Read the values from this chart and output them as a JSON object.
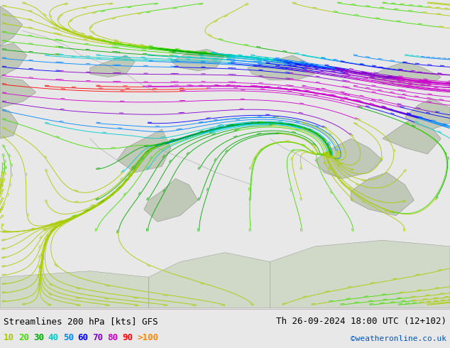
{
  "title_left": "Streamlines 200 hPa [kts] GFS",
  "title_right": "Th 26-09-2024 18:00 UTC (12+102)",
  "credit": "©weatheronline.co.uk",
  "legend_values": [
    "10",
    "20",
    "30",
    "40",
    "50",
    "60",
    "70",
    "80",
    "90",
    ">100"
  ],
  "legend_colors": [
    "#aacc00",
    "#44dd00",
    "#00aa00",
    "#00cccc",
    "#0088ff",
    "#0000ff",
    "#8800cc",
    "#cc00cc",
    "#ff0000",
    "#ff8800"
  ],
  "bg_color": "#c8e8a0",
  "bottom_bg": "#e8e8e8",
  "text_color": "#000000",
  "title_fontsize": 9,
  "credit_color": "#0055bb",
  "figsize": [
    6.34,
    4.9
  ],
  "dpi": 100,
  "speed_colors": {
    "10": "#aacc00",
    "20": "#44dd00",
    "30": "#00aa00",
    "40": "#00cccc",
    "50": "#0088ff",
    "60": "#0000ff",
    "70": "#8800cc",
    "80": "#cc00cc",
    "90": "#ff0000",
    "100": "#ff8800"
  }
}
